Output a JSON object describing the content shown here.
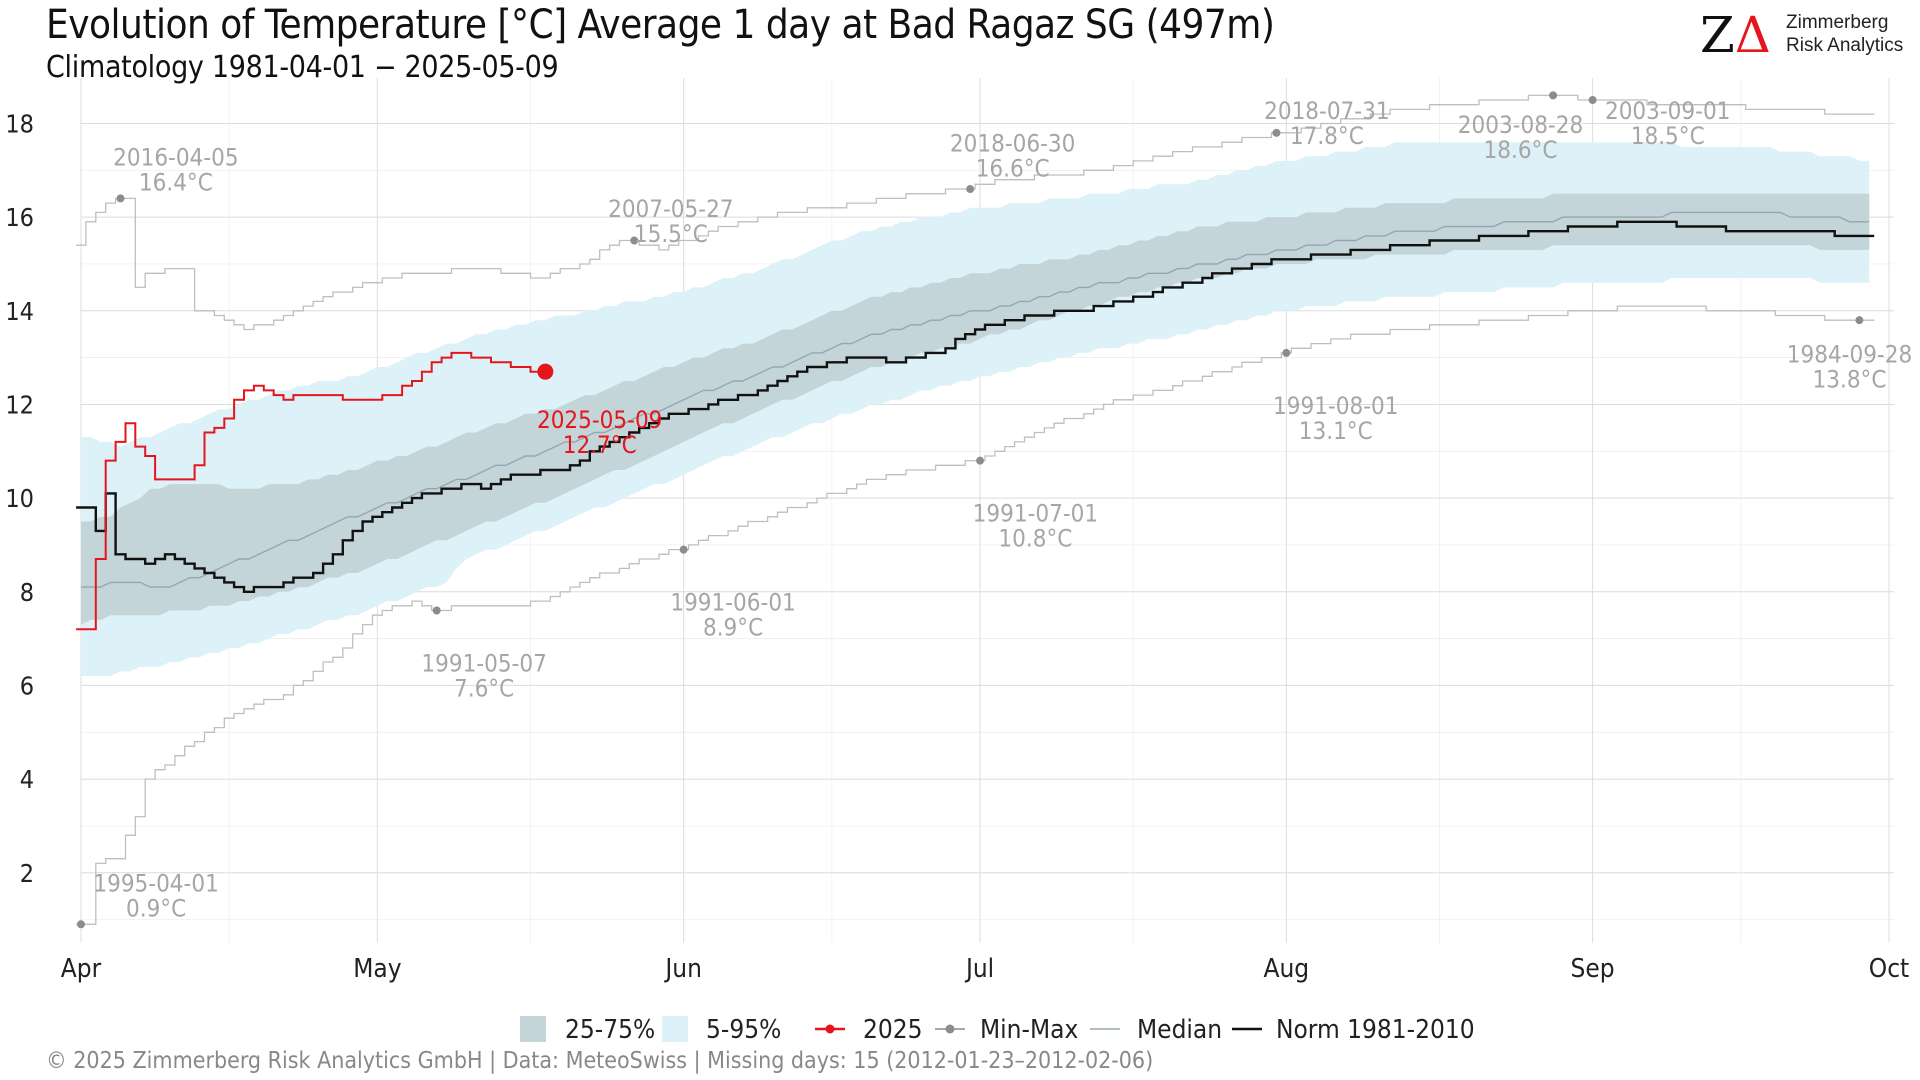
{
  "title": "Evolution of Temperature [°C] Average 1 day at Bad Ragaz  SG (497m)",
  "subtitle": "Climatology 1981-04-01 − 2025-05-09",
  "logo": {
    "mark": "ZΔ",
    "line1": "Zimmerberg",
    "line2": "Risk Analytics"
  },
  "copyright": "©  2025 Zimmerberg Risk Analytics GmbH | Data: MeteoSwiss | Missing days: 15 (2012-01-23–2012-02-06)",
  "colors": {
    "p2575": "#c4d5da",
    "p595": "#ddf1f8",
    "current": "#e5151c",
    "minmax": "#bfbfbf",
    "median": "#95a7ae",
    "norm": "#111111",
    "label_gray": "#a6a6a6"
  },
  "legend": [
    {
      "key": "p2575",
      "label": "25-75%"
    },
    {
      "key": "p595",
      "label": "5-95%"
    },
    {
      "key": "current",
      "label": "2025"
    },
    {
      "key": "minmax",
      "label": "Min-Max"
    },
    {
      "key": "median",
      "label": "Median"
    },
    {
      "key": "norm",
      "label": "Norm 1981-2010"
    }
  ],
  "chart_data": {
    "type": "line",
    "x_unit": "day of year (1 = Apr 1)",
    "xlim": [
      1,
      184
    ],
    "ylim": [
      0.5,
      18.8
    ],
    "ylabel": "",
    "y_ticks": [
      2,
      4,
      6,
      8,
      10,
      12,
      14,
      16,
      18
    ],
    "x_ticks": [
      {
        "label": "Apr",
        "day": 1
      },
      {
        "label": "May",
        "day": 31
      },
      {
        "label": "Jun",
        "day": 62
      },
      {
        "label": "Jul",
        "day": 92
      },
      {
        "label": "Aug",
        "day": 123
      },
      {
        "label": "Sep",
        "day": 154
      },
      {
        "label": "Oct",
        "day": 184
      }
    ],
    "grid": true,
    "legend_position": "bottom",
    "series": [
      {
        "name": "25-75%",
        "kind": "band",
        "lower": [
          [
            1,
            7.3
          ],
          [
            4,
            7.5
          ],
          [
            8,
            7.5
          ],
          [
            15,
            7.7
          ],
          [
            20,
            7.9
          ],
          [
            30,
            8.5
          ],
          [
            40,
            9.3
          ],
          [
            50,
            10.1
          ],
          [
            62,
            11.2
          ],
          [
            70,
            11.9
          ],
          [
            80,
            12.7
          ],
          [
            92,
            13.4
          ],
          [
            105,
            14.2
          ],
          [
            115,
            14.7
          ],
          [
            123,
            15.0
          ],
          [
            135,
            15.2
          ],
          [
            154,
            15.4
          ],
          [
            170,
            15.4
          ],
          [
            182,
            15.3
          ]
        ],
        "upper": [
          [
            1,
            9.5
          ],
          [
            4,
            9.6
          ],
          [
            8,
            10.2
          ],
          [
            12,
            10.3
          ],
          [
            18,
            10.2
          ],
          [
            25,
            10.4
          ],
          [
            30,
            10.7
          ],
          [
            35,
            11.0
          ],
          [
            42,
            11.5
          ],
          [
            50,
            12.0
          ],
          [
            62,
            12.9
          ],
          [
            70,
            13.4
          ],
          [
            80,
            14.2
          ],
          [
            92,
            14.8
          ],
          [
            105,
            15.3
          ],
          [
            115,
            15.8
          ],
          [
            123,
            16.0
          ],
          [
            135,
            16.3
          ],
          [
            154,
            16.5
          ],
          [
            170,
            16.5
          ],
          [
            182,
            16.5
          ]
        ]
      },
      {
        "name": "5-95%",
        "kind": "band",
        "lower": [
          [
            1,
            6.2
          ],
          [
            4,
            6.2
          ],
          [
            8,
            6.4
          ],
          [
            15,
            6.7
          ],
          [
            20,
            7.0
          ],
          [
            30,
            7.6
          ],
          [
            35,
            8.0
          ],
          [
            38,
            8.2
          ],
          [
            40,
            8.7
          ],
          [
            50,
            9.5
          ],
          [
            62,
            10.5
          ],
          [
            70,
            11.2
          ],
          [
            80,
            11.9
          ],
          [
            92,
            12.6
          ],
          [
            105,
            13.2
          ],
          [
            115,
            13.6
          ],
          [
            123,
            14.0
          ],
          [
            135,
            14.3
          ],
          [
            154,
            14.6
          ],
          [
            170,
            14.7
          ],
          [
            182,
            14.6
          ]
        ],
        "upper": [
          [
            1,
            11.3
          ],
          [
            5,
            11.1
          ],
          [
            10,
            11.5
          ],
          [
            20,
            12.2
          ],
          [
            30,
            12.7
          ],
          [
            40,
            13.4
          ],
          [
            50,
            13.9
          ],
          [
            62,
            14.4
          ],
          [
            70,
            14.9
          ],
          [
            80,
            15.7
          ],
          [
            92,
            16.2
          ],
          [
            105,
            16.5
          ],
          [
            115,
            16.8
          ],
          [
            123,
            17.2
          ],
          [
            135,
            17.6
          ],
          [
            154,
            17.6
          ],
          [
            170,
            17.5
          ],
          [
            182,
            17.2
          ]
        ]
      },
      {
        "name": "Median",
        "kind": "line",
        "points": [
          [
            1,
            8.1
          ],
          [
            5,
            8.2
          ],
          [
            10,
            8.1
          ],
          [
            15,
            8.5
          ],
          [
            20,
            8.9
          ],
          [
            25,
            9.3
          ],
          [
            31,
            9.8
          ],
          [
            38,
            10.3
          ],
          [
            45,
            10.8
          ],
          [
            55,
            11.5
          ],
          [
            62,
            12.1
          ],
          [
            70,
            12.7
          ],
          [
            80,
            13.4
          ],
          [
            92,
            14.0
          ],
          [
            105,
            14.6
          ],
          [
            115,
            15.0
          ],
          [
            123,
            15.3
          ],
          [
            135,
            15.7
          ],
          [
            154,
            16.0
          ],
          [
            170,
            16.1
          ],
          [
            182,
            15.9
          ]
        ]
      },
      {
        "name": "Norm 1981-2010",
        "kind": "step",
        "points": [
          [
            1,
            9.8
          ],
          [
            2,
            9.8
          ],
          [
            3,
            9.3
          ],
          [
            4,
            10.1
          ],
          [
            5,
            8.8
          ],
          [
            8,
            8.6
          ],
          [
            10,
            8.8
          ],
          [
            12,
            8.6
          ],
          [
            15,
            8.3
          ],
          [
            18,
            8.0
          ],
          [
            22,
            8.2
          ],
          [
            25,
            8.4
          ],
          [
            30,
            9.5
          ],
          [
            35,
            10.0
          ],
          [
            40,
            10.3
          ],
          [
            42,
            10.2
          ],
          [
            45,
            10.5
          ],
          [
            50,
            10.6
          ],
          [
            55,
            11.2
          ],
          [
            60,
            11.7
          ],
          [
            62,
            11.8
          ],
          [
            70,
            12.3
          ],
          [
            75,
            12.8
          ],
          [
            80,
            13.0
          ],
          [
            84,
            12.9
          ],
          [
            88,
            13.1
          ],
          [
            92,
            13.6
          ],
          [
            98,
            13.9
          ],
          [
            105,
            14.1
          ],
          [
            110,
            14.4
          ],
          [
            115,
            14.7
          ],
          [
            123,
            15.1
          ],
          [
            128,
            15.2
          ],
          [
            135,
            15.4
          ],
          [
            145,
            15.6
          ],
          [
            154,
            15.8
          ],
          [
            160,
            15.9
          ],
          [
            170,
            15.7
          ],
          [
            175,
            15.7
          ],
          [
            182,
            15.6
          ]
        ]
      },
      {
        "name": "Max",
        "kind": "step",
        "points": [
          [
            1,
            15.4
          ],
          [
            2,
            15.9
          ],
          [
            4,
            16.3
          ],
          [
            5,
            16.4
          ],
          [
            6,
            16.4
          ],
          [
            7,
            14.5
          ],
          [
            8,
            14.8
          ],
          [
            12,
            14.9
          ],
          [
            13,
            14.0
          ],
          [
            15,
            13.9
          ],
          [
            18,
            13.6
          ],
          [
            20,
            13.7
          ],
          [
            25,
            14.2
          ],
          [
            30,
            14.6
          ],
          [
            35,
            14.8
          ],
          [
            42,
            14.9
          ],
          [
            48,
            14.7
          ],
          [
            52,
            15.0
          ],
          [
            56,
            15.5
          ],
          [
            60,
            15.3
          ],
          [
            65,
            15.7
          ],
          [
            70,
            16.0
          ],
          [
            80,
            16.3
          ],
          [
            90,
            16.6
          ],
          [
            95,
            16.8
          ],
          [
            105,
            17.0
          ],
          [
            115,
            17.5
          ],
          [
            123,
            17.8
          ],
          [
            135,
            18.3
          ],
          [
            150,
            18.6
          ],
          [
            154,
            18.5
          ],
          [
            165,
            18.4
          ],
          [
            182,
            18.2
          ]
        ]
      },
      {
        "name": "Min",
        "kind": "step",
        "points": [
          [
            1,
            0.9
          ],
          [
            2,
            0.9
          ],
          [
            3,
            2.2
          ],
          [
            5,
            2.3
          ],
          [
            6,
            2.8
          ],
          [
            7,
            3.2
          ],
          [
            8,
            4.0
          ],
          [
            10,
            4.3
          ],
          [
            14,
            5.0
          ],
          [
            18,
            5.5
          ],
          [
            22,
            5.8
          ],
          [
            25,
            6.3
          ],
          [
            28,
            6.8
          ],
          [
            30,
            7.3
          ],
          [
            32,
            7.6
          ],
          [
            35,
            7.8
          ],
          [
            37,
            7.6
          ],
          [
            40,
            7.7
          ],
          [
            45,
            7.7
          ],
          [
            48,
            7.8
          ],
          [
            52,
            8.2
          ],
          [
            56,
            8.5
          ],
          [
            60,
            8.8
          ],
          [
            62,
            8.9
          ],
          [
            68,
            9.4
          ],
          [
            75,
            9.9
          ],
          [
            80,
            10.3
          ],
          [
            85,
            10.6
          ],
          [
            90,
            10.7
          ],
          [
            92,
            10.8
          ],
          [
            98,
            11.4
          ],
          [
            105,
            12.0
          ],
          [
            112,
            12.4
          ],
          [
            118,
            12.8
          ],
          [
            123,
            13.1
          ],
          [
            128,
            13.4
          ],
          [
            135,
            13.6
          ],
          [
            145,
            13.8
          ],
          [
            154,
            14.0
          ],
          [
            160,
            14.1
          ],
          [
            170,
            14.0
          ],
          [
            180,
            13.8
          ],
          [
            182,
            13.8
          ]
        ]
      },
      {
        "name": "2025",
        "kind": "step",
        "points": [
          [
            1,
            7.2
          ],
          [
            2,
            7.2
          ],
          [
            3,
            8.7
          ],
          [
            4,
            10.8
          ],
          [
            5,
            11.2
          ],
          [
            6,
            11.6
          ],
          [
            7,
            11.1
          ],
          [
            8,
            10.9
          ],
          [
            9,
            10.4
          ],
          [
            12,
            10.4
          ],
          [
            13,
            10.7
          ],
          [
            14,
            11.4
          ],
          [
            15,
            11.5
          ],
          [
            16,
            11.7
          ],
          [
            17,
            12.1
          ],
          [
            18,
            12.3
          ],
          [
            19,
            12.4
          ],
          [
            20,
            12.3
          ],
          [
            22,
            12.1
          ],
          [
            23,
            12.2
          ],
          [
            26,
            12.2
          ],
          [
            30,
            12.1
          ],
          [
            33,
            12.2
          ],
          [
            35,
            12.5
          ],
          [
            37,
            12.9
          ],
          [
            39,
            13.1
          ],
          [
            41,
            13.0
          ],
          [
            43,
            12.9
          ],
          [
            45,
            12.8
          ],
          [
            47,
            12.7
          ],
          [
            48,
            12.7
          ]
        ]
      }
    ],
    "annotations": [
      {
        "date": "2016-04-05",
        "value": "16.4°C",
        "x": 5,
        "y": 16.4,
        "label_x": 10.6,
        "label_y": 17.1
      },
      {
        "date": "2007-05-27",
        "value": "15.5°C",
        "x": 57,
        "y": 15.5,
        "label_x": 60.7,
        "label_y": 16.0
      },
      {
        "date": "2018-06-30",
        "value": "16.6°C",
        "x": 91,
        "y": 16.6,
        "label_x": 95.3,
        "label_y": 17.4
      },
      {
        "date": "2018-07-31",
        "value": "17.8°C",
        "x": 122,
        "y": 17.8,
        "label_x": 127.1,
        "label_y": 18.1
      },
      {
        "date": "2003-08-28",
        "value": "18.6°C",
        "x": 150,
        "y": 18.6,
        "label_x": 146.7,
        "label_y": 17.8
      },
      {
        "date": "2003-09-01",
        "value": "18.5°C",
        "x": 154,
        "y": 18.5,
        "label_x": 161.6,
        "label_y": 18.1
      },
      {
        "date": "1984-09-28",
        "value": "13.8°C",
        "x": 181,
        "y": 13.8,
        "label_x": 180.0,
        "label_y": 12.9
      },
      {
        "date": "1991-08-01",
        "value": "13.1°C",
        "x": 123,
        "y": 13.1,
        "label_x": 128.0,
        "label_y": 11.8
      },
      {
        "date": "1991-07-01",
        "value": "10.8°C",
        "x": 92,
        "y": 10.8,
        "label_x": 97.6,
        "label_y": 9.5
      },
      {
        "date": "1991-06-01",
        "value": "8.9°C",
        "x": 62,
        "y": 8.9,
        "label_x": 67.0,
        "label_y": 7.6
      },
      {
        "date": "1991-05-07",
        "value": "7.6°C",
        "x": 37,
        "y": 7.6,
        "label_x": 41.8,
        "label_y": 6.3
      },
      {
        "date": "1995-04-01",
        "value": "0.9°C",
        "x": 1,
        "y": 0.9,
        "label_x": 8.6,
        "label_y": 1.6
      },
      {
        "date": "2025-05-09",
        "value": "12.7°C",
        "x": 48,
        "y": 12.7,
        "label_x": 53.5,
        "label_y": 11.5,
        "color_key": "current"
      }
    ]
  }
}
